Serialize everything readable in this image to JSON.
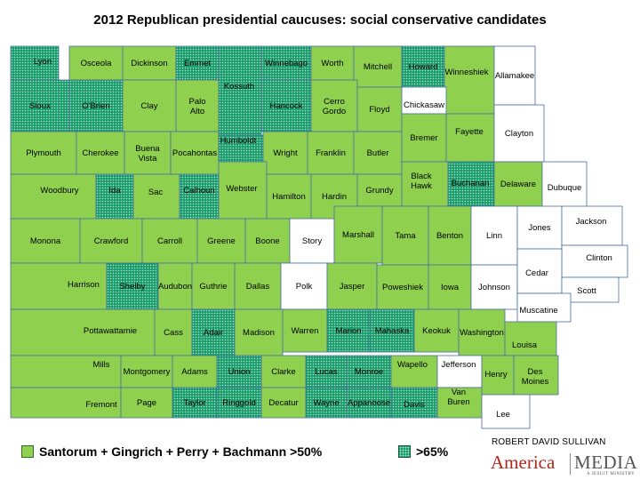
{
  "title": "2012 Republican presidential caucuses: social conservative candidates",
  "colors": {
    "green": "#8fd14f",
    "dotted": "#1a9b6b",
    "white": "#ffffff",
    "border": "#4a6fa5"
  },
  "legend": {
    "green_label": "Santorum + Gingrich + Perry + Bachmann >50%",
    "dotted_label": ">65%"
  },
  "credit": "ROBERT DAVID SULLIVAN",
  "logo": {
    "america": "America",
    "media": "MEDIA",
    "tagline": "A JESUIT MINISTRY"
  },
  "counties": [
    {
      "name": "Lyon",
      "cat": "dotted"
    },
    {
      "name": "Osceola",
      "cat": "green"
    },
    {
      "name": "Dickinson",
      "cat": "green"
    },
    {
      "name": "Emmet",
      "cat": "dotted"
    },
    {
      "name": "Kossuth",
      "cat": "dotted"
    },
    {
      "name": "Winnebago",
      "cat": "dotted"
    },
    {
      "name": "Worth",
      "cat": "green"
    },
    {
      "name": "Mitchell",
      "cat": "green"
    },
    {
      "name": "Howard",
      "cat": "dotted"
    },
    {
      "name": "Winneshiek",
      "cat": "green"
    },
    {
      "name": "Allamakee",
      "cat": "white"
    },
    {
      "name": "Sioux",
      "cat": "dotted"
    },
    {
      "name": "O'Brien",
      "cat": "dotted"
    },
    {
      "name": "Clay",
      "cat": "green"
    },
    {
      "name": "Palo Alto",
      "cat": "green"
    },
    {
      "name": "Hancock",
      "cat": "dotted"
    },
    {
      "name": "Cerro Gordo",
      "cat": "green"
    },
    {
      "name": "Floyd",
      "cat": "green"
    },
    {
      "name": "Chickasaw",
      "cat": "white"
    },
    {
      "name": "Fayette",
      "cat": "green"
    },
    {
      "name": "Clayton",
      "cat": "white"
    },
    {
      "name": "Plymouth",
      "cat": "green"
    },
    {
      "name": "Cherokee",
      "cat": "green"
    },
    {
      "name": "Buena Vista",
      "cat": "green"
    },
    {
      "name": "Pocahontas",
      "cat": "green"
    },
    {
      "name": "Humboldt",
      "cat": "dotted"
    },
    {
      "name": "Wright",
      "cat": "green"
    },
    {
      "name": "Franklin",
      "cat": "green"
    },
    {
      "name": "Butler",
      "cat": "green"
    },
    {
      "name": "Bremer",
      "cat": "green"
    },
    {
      "name": "Woodbury",
      "cat": "green"
    },
    {
      "name": "Ida",
      "cat": "dotted"
    },
    {
      "name": "Sac",
      "cat": "green"
    },
    {
      "name": "Calhoun",
      "cat": "dotted"
    },
    {
      "name": "Webster",
      "cat": "green"
    },
    {
      "name": "Hamilton",
      "cat": "green"
    },
    {
      "name": "Hardin",
      "cat": "green"
    },
    {
      "name": "Grundy",
      "cat": "green"
    },
    {
      "name": "Black Hawk",
      "cat": "green"
    },
    {
      "name": "Buchanan",
      "cat": "dotted"
    },
    {
      "name": "Delaware",
      "cat": "green"
    },
    {
      "name": "Dubuque",
      "cat": "white"
    },
    {
      "name": "Monona",
      "cat": "green"
    },
    {
      "name": "Crawford",
      "cat": "green"
    },
    {
      "name": "Carroll",
      "cat": "green"
    },
    {
      "name": "Greene",
      "cat": "green"
    },
    {
      "name": "Boone",
      "cat": "green"
    },
    {
      "name": "Story",
      "cat": "white"
    },
    {
      "name": "Marshall",
      "cat": "green"
    },
    {
      "name": "Tama",
      "cat": "green"
    },
    {
      "name": "Benton",
      "cat": "green"
    },
    {
      "name": "Linn",
      "cat": "white"
    },
    {
      "name": "Jones",
      "cat": "white"
    },
    {
      "name": "Jackson",
      "cat": "white"
    },
    {
      "name": "Clinton",
      "cat": "white"
    },
    {
      "name": "Harrison",
      "cat": "green"
    },
    {
      "name": "Shelby",
      "cat": "dotted"
    },
    {
      "name": "Audubon",
      "cat": "green"
    },
    {
      "name": "Guthrie",
      "cat": "green"
    },
    {
      "name": "Dallas",
      "cat": "green"
    },
    {
      "name": "Polk",
      "cat": "white"
    },
    {
      "name": "Jasper",
      "cat": "green"
    },
    {
      "name": "Poweshiek",
      "cat": "green"
    },
    {
      "name": "Iowa",
      "cat": "green"
    },
    {
      "name": "Johnson",
      "cat": "white"
    },
    {
      "name": "Cedar",
      "cat": "white"
    },
    {
      "name": "Scott",
      "cat": "white"
    },
    {
      "name": "Muscatine",
      "cat": "white"
    },
    {
      "name": "Pottawattamie",
      "cat": "green"
    },
    {
      "name": "Cass",
      "cat": "green"
    },
    {
      "name": "Adair",
      "cat": "dotted"
    },
    {
      "name": "Madison",
      "cat": "green"
    },
    {
      "name": "Warren",
      "cat": "green"
    },
    {
      "name": "Marion",
      "cat": "dotted"
    },
    {
      "name": "Mahaska",
      "cat": "dotted"
    },
    {
      "name": "Keokuk",
      "cat": "green"
    },
    {
      "name": "Washington",
      "cat": "green"
    },
    {
      "name": "Louisa",
      "cat": "green"
    },
    {
      "name": "Mills",
      "cat": "green"
    },
    {
      "name": "Montgomery",
      "cat": "green"
    },
    {
      "name": "Adams",
      "cat": "green"
    },
    {
      "name": "Union",
      "cat": "dotted"
    },
    {
      "name": "Clarke",
      "cat": "green"
    },
    {
      "name": "Lucas",
      "cat": "dotted"
    },
    {
      "name": "Monroe",
      "cat": "dotted"
    },
    {
      "name": "Wapello",
      "cat": "green"
    },
    {
      "name": "Jefferson",
      "cat": "white"
    },
    {
      "name": "Henry",
      "cat": "green"
    },
    {
      "name": "Des Moines",
      "cat": "green"
    },
    {
      "name": "Fremont",
      "cat": "green"
    },
    {
      "name": "Page",
      "cat": "green"
    },
    {
      "name": "Taylor",
      "cat": "dotted"
    },
    {
      "name": "Ringgold",
      "cat": "dotted"
    },
    {
      "name": "Decatur",
      "cat": "green"
    },
    {
      "name": "Wayne",
      "cat": "dotted"
    },
    {
      "name": "Appanoose",
      "cat": "dotted"
    },
    {
      "name": "Davis",
      "cat": "dotted"
    },
    {
      "name": "Van Buren",
      "cat": "green"
    },
    {
      "name": "Lee",
      "cat": "white"
    }
  ]
}
